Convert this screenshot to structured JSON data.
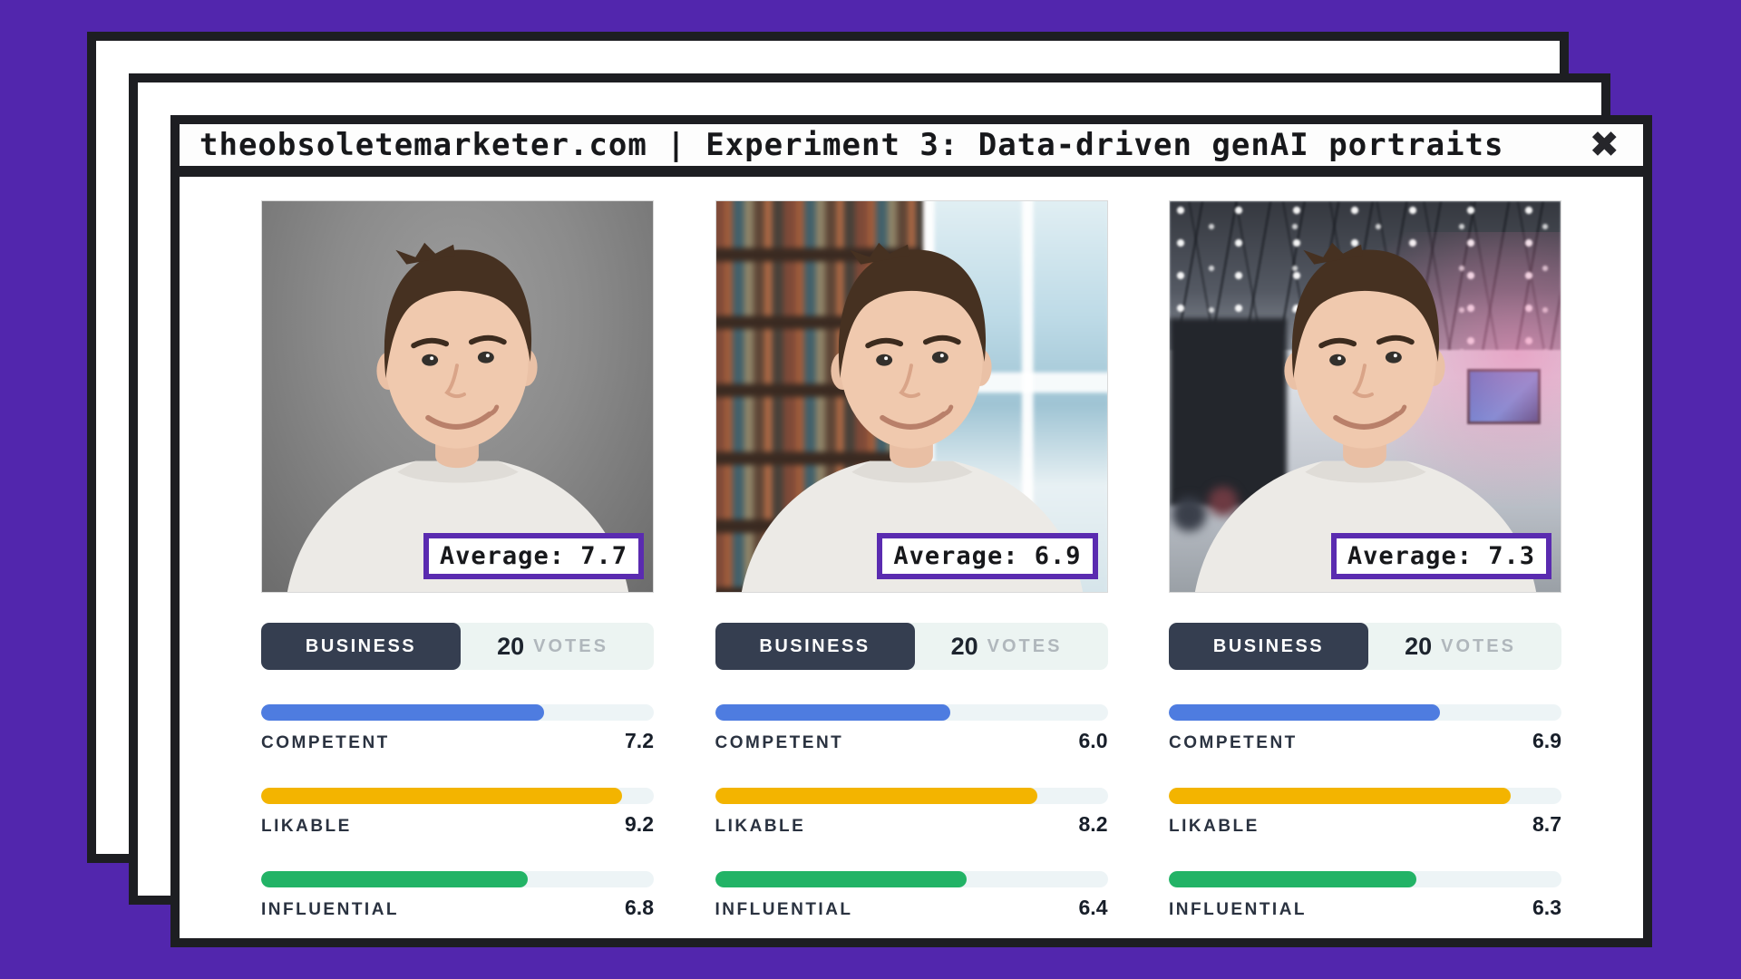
{
  "colors": {
    "background": "#5226ad",
    "frame": "#1d1e22",
    "accent_purple": "#5a2bb0",
    "tab_bg": "#353e50",
    "competent": "#4e7ce0",
    "likable": "#f3b400",
    "influential": "#22b366"
  },
  "window": {
    "title": "theobsoletemarketer.com | Experiment 3: Data-driven genAI portraits",
    "close_icon": "✖"
  },
  "cards": [
    {
      "photo_alt": "portrait-studio-gray",
      "average_label": "Average:",
      "average_value": "7.7",
      "tab_label": "BUSINESS",
      "votes_count": "20",
      "votes_label": "VOTES",
      "metrics": [
        {
          "label": "COMPETENT",
          "value": "7.2"
        },
        {
          "label": "LIKABLE",
          "value": "9.2"
        },
        {
          "label": "INFLUENTIAL",
          "value": "6.8"
        }
      ]
    },
    {
      "photo_alt": "portrait-library",
      "average_label": "Average:",
      "average_value": "6.9",
      "tab_label": "BUSINESS",
      "votes_count": "20",
      "votes_label": "VOTES",
      "metrics": [
        {
          "label": "COMPETENT",
          "value": "6.0"
        },
        {
          "label": "LIKABLE",
          "value": "8.2"
        },
        {
          "label": "INFLUENTIAL",
          "value": "6.4"
        }
      ]
    },
    {
      "photo_alt": "portrait-conference",
      "average_label": "Average:",
      "average_value": "7.3",
      "tab_label": "BUSINESS",
      "votes_count": "20",
      "votes_label": "VOTES",
      "metrics": [
        {
          "label": "COMPETENT",
          "value": "6.9"
        },
        {
          "label": "LIKABLE",
          "value": "8.7"
        },
        {
          "label": "INFLUENTIAL",
          "value": "6.3"
        }
      ]
    }
  ]
}
